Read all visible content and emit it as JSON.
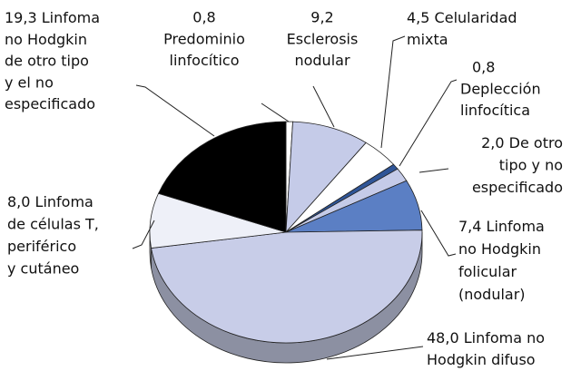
{
  "chart_data": {
    "type": "pie",
    "categories": [
      [
        "Predominio",
        "linfocítico"
      ],
      [
        "Esclerosis",
        "nodular"
      ],
      [
        "Celularidad",
        "mixta"
      ],
      [
        "Deplección",
        "linfocítica"
      ],
      [
        "De otro",
        "tipo y no",
        "especificado"
      ],
      [
        "Linfoma",
        "no Hodgkin",
        "folicular",
        "(nodular)"
      ],
      [
        "Linfoma no",
        "Hodgkin difuso"
      ],
      [
        "Linfoma",
        "de células T,",
        "periférico",
        "y cutáneo"
      ],
      [
        "Linfoma",
        "no Hodgkin",
        "de otro tipo",
        "y el no",
        "especificado"
      ]
    ],
    "values": [
      0.8,
      9.2,
      4.5,
      0.8,
      2.0,
      7.4,
      48.0,
      8.0,
      19.3
    ],
    "value_labels": [
      "0,8",
      "9,2",
      "4,5",
      "0,8",
      "2,0",
      "7,4",
      "48,0",
      "8,0",
      "19,3"
    ],
    "colors": [
      "#ffffff",
      "#c5cbe8",
      "#ffffff",
      "#2f5597",
      "#c5cbe8",
      "#5b7fc4",
      "#c8cde8",
      "#eef0f8",
      "#000000"
    ]
  }
}
